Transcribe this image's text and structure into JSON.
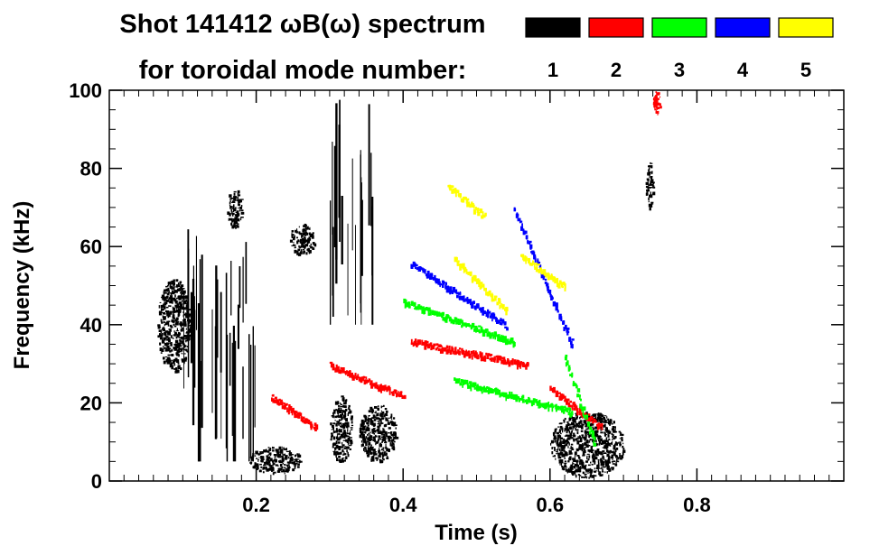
{
  "chart_data": {
    "type": "heatmap",
    "title_line1": "Shot 141412 ωB(ω) spectrum",
    "title_line2": "for toroidal mode number:",
    "xlabel": "Time (s)",
    "ylabel": "Frequency (kHz)",
    "xlim": [
      0.0,
      1.0
    ],
    "ylim": [
      0,
      100
    ],
    "x_ticks": [
      0.2,
      0.4,
      0.6,
      0.8
    ],
    "x_tick_labels": [
      "0.2",
      "0.4",
      "0.6",
      "0.8"
    ],
    "y_ticks": [
      0,
      20,
      40,
      60,
      80,
      100
    ],
    "y_tick_labels": [
      "0",
      "20",
      "40",
      "60",
      "80",
      "100"
    ],
    "legend": [
      {
        "label": "1",
        "color": "#000000"
      },
      {
        "label": "2",
        "color": "#ff0000"
      },
      {
        "label": "3",
        "color": "#00ff00"
      },
      {
        "label": "4",
        "color": "#0000ff"
      },
      {
        "label": "5",
        "color": "#ffff00"
      }
    ],
    "legend_placement": "top-right",
    "grid": false,
    "regions": [
      {
        "mode": 1,
        "t": [
          0.065,
          0.11
        ],
        "f": [
          28,
          52
        ],
        "kind": "blob"
      },
      {
        "mode": 1,
        "t": [
          0.19,
          0.26
        ],
        "f": [
          2,
          9
        ],
        "kind": "blob"
      },
      {
        "mode": 1,
        "t": [
          0.3,
          0.33
        ],
        "f": [
          5,
          22
        ],
        "kind": "blob"
      },
      {
        "mode": 1,
        "t": [
          0.34,
          0.39
        ],
        "f": [
          5,
          20
        ],
        "kind": "blob"
      },
      {
        "mode": 1,
        "t": [
          0.6,
          0.7
        ],
        "f": [
          1,
          18
        ],
        "kind": "blob"
      },
      {
        "mode": 1,
        "t": [
          0.245,
          0.28
        ],
        "f": [
          58,
          66
        ],
        "kind": "blob"
      },
      {
        "mode": 1,
        "t": [
          0.16,
          0.18
        ],
        "f": [
          65,
          75
        ],
        "kind": "blob"
      },
      {
        "mode": 1,
        "t": [
          0.73,
          0.74
        ],
        "f": [
          70,
          82
        ],
        "kind": "blob"
      },
      {
        "mode": 1,
        "t": [
          0.3,
          0.36
        ],
        "f": [
          40,
          98
        ],
        "kind": "streaks"
      },
      {
        "mode": 1,
        "t": [
          0.1,
          0.2
        ],
        "f": [
          5,
          65
        ],
        "kind": "streaks"
      },
      {
        "mode": 2,
        "t": [
          0.22,
          0.28
        ],
        "f": [
          14,
          22
        ],
        "kind": "line"
      },
      {
        "mode": 2,
        "t": [
          0.3,
          0.4
        ],
        "f": [
          22,
          30
        ],
        "kind": "line"
      },
      {
        "mode": 2,
        "t": [
          0.41,
          0.57
        ],
        "f": [
          30,
          36
        ],
        "kind": "line"
      },
      {
        "mode": 2,
        "t": [
          0.6,
          0.67
        ],
        "f": [
          14,
          24
        ],
        "kind": "line"
      },
      {
        "mode": 2,
        "t": [
          0.74,
          0.75
        ],
        "f": [
          94,
          100
        ],
        "kind": "blob"
      },
      {
        "mode": 3,
        "t": [
          0.4,
          0.55
        ],
        "f": [
          36,
          46
        ],
        "kind": "line"
      },
      {
        "mode": 3,
        "t": [
          0.47,
          0.63
        ],
        "f": [
          18,
          26
        ],
        "kind": "line"
      },
      {
        "mode": 3,
        "t": [
          0.62,
          0.66
        ],
        "f": [
          10,
          32
        ],
        "kind": "line"
      },
      {
        "mode": 4,
        "t": [
          0.41,
          0.54
        ],
        "f": [
          40,
          56
        ],
        "kind": "line"
      },
      {
        "mode": 4,
        "t": [
          0.55,
          0.63
        ],
        "f": [
          35,
          70
        ],
        "kind": "line"
      },
      {
        "mode": 5,
        "t": [
          0.46,
          0.51
        ],
        "f": [
          68,
          76
        ],
        "kind": "line"
      },
      {
        "mode": 5,
        "t": [
          0.47,
          0.54
        ],
        "f": [
          44,
          57
        ],
        "kind": "line"
      },
      {
        "mode": 5,
        "t": [
          0.56,
          0.62
        ],
        "f": [
          50,
          58
        ],
        "kind": "line"
      }
    ]
  }
}
